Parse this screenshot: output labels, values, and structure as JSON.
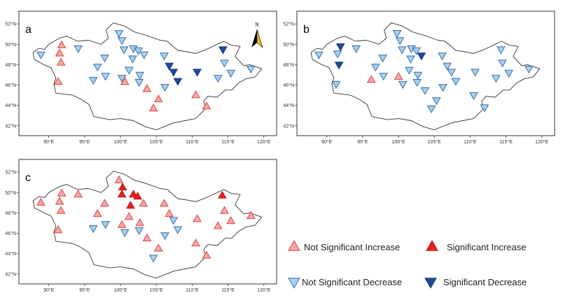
{
  "colors": {
    "not_sig_increase_fill": "#f4a9a8",
    "not_sig_increase_stroke": "#d9453f",
    "sig_increase_fill": "#e8201f",
    "sig_increase_stroke": "#b51614",
    "not_sig_decrease_fill": "#a7d0ee",
    "not_sig_decrease_stroke": "#3a6fa8",
    "sig_decrease_fill": "#1f4d9e",
    "sig_decrease_stroke": "#12336b",
    "outline": "#333333"
  },
  "map": {
    "lon_range": [
      87,
      121
    ],
    "lat_range": [
      41.3,
      52.7
    ],
    "lon_ticks": [
      90,
      95,
      100,
      105,
      110,
      115,
      120
    ],
    "lat_ticks": [
      42,
      44,
      46,
      48,
      50,
      52
    ],
    "lon_tick_labels": [
      "90°E",
      "95°E",
      "100°E",
      "105°E",
      "110°E",
      "115°E",
      "120°E"
    ],
    "lat_tick_labels": [
      "42°N",
      "44°N",
      "46°N",
      "48°N",
      "50°N",
      "52°N"
    ],
    "north_label": "N",
    "border": [
      [
        87.8,
        49.2
      ],
      [
        88.6,
        49.6
      ],
      [
        89.4,
        49.5
      ],
      [
        90.0,
        50.0
      ],
      [
        91.5,
        50.6
      ],
      [
        92.5,
        50.8
      ],
      [
        94.0,
        50.3
      ],
      [
        95.5,
        50.4
      ],
      [
        97.3,
        50.0
      ],
      [
        98.3,
        50.6
      ],
      [
        98.0,
        51.4
      ],
      [
        99.0,
        52.1
      ],
      [
        100.5,
        51.8
      ],
      [
        102.0,
        51.2
      ],
      [
        103.5,
        50.9
      ],
      [
        105.5,
        50.4
      ],
      [
        106.5,
        50.3
      ],
      [
        108.0,
        49.4
      ],
      [
        109.0,
        49.3
      ],
      [
        110.5,
        49.1
      ],
      [
        112.0,
        49.5
      ],
      [
        113.5,
        50.0
      ],
      [
        114.4,
        50.3
      ],
      [
        115.5,
        49.9
      ],
      [
        116.7,
        49.8
      ],
      [
        116.0,
        48.8
      ],
      [
        117.2,
        47.9
      ],
      [
        118.0,
        48.0
      ],
      [
        119.7,
        47.6
      ],
      [
        118.8,
        46.8
      ],
      [
        117.5,
        46.6
      ],
      [
        116.5,
        46.2
      ],
      [
        115.5,
        45.5
      ],
      [
        114.6,
        45.5
      ],
      [
        113.5,
        44.8
      ],
      [
        112.2,
        44.9
      ],
      [
        111.6,
        44.4
      ],
      [
        111.9,
        43.7
      ],
      [
        110.5,
        42.7
      ],
      [
        109.0,
        42.5
      ],
      [
        107.5,
        42.3
      ],
      [
        105.0,
        41.6
      ],
      [
        103.5,
        41.9
      ],
      [
        101.8,
        42.5
      ],
      [
        100.0,
        42.7
      ],
      [
        98.5,
        42.6
      ],
      [
        97.0,
        42.8
      ],
      [
        96.3,
        42.9
      ],
      [
        95.6,
        44.1
      ],
      [
        94.5,
        44.6
      ],
      [
        93.3,
        45.0
      ],
      [
        91.0,
        45.2
      ],
      [
        90.7,
        46.1
      ],
      [
        91.0,
        46.7
      ],
      [
        90.3,
        47.7
      ],
      [
        89.3,
        48.0
      ],
      [
        88.0,
        48.5
      ],
      [
        87.8,
        49.2
      ]
    ]
  },
  "panels": [
    {
      "id": "a",
      "label": "a",
      "show_north_arrow": true,
      "stations": [
        {
          "lon": 88.9,
          "lat": 49.0,
          "trend": "nsd"
        },
        {
          "lon": 91.8,
          "lat": 49.9,
          "trend": "nsi"
        },
        {
          "lon": 91.5,
          "lat": 49.1,
          "trend": "nsi"
        },
        {
          "lon": 91.7,
          "lat": 48.2,
          "trend": "nsi"
        },
        {
          "lon": 91.3,
          "lat": 46.3,
          "trend": "nsi"
        },
        {
          "lon": 94.1,
          "lat": 49.6,
          "trend": "nsd"
        },
        {
          "lon": 96.2,
          "lat": 46.5,
          "trend": "nsd"
        },
        {
          "lon": 96.8,
          "lat": 47.8,
          "trend": "nsd"
        },
        {
          "lon": 97.8,
          "lat": 48.7,
          "trend": "nsd"
        },
        {
          "lon": 97.9,
          "lat": 46.9,
          "trend": "nsd"
        },
        {
          "lon": 99.8,
          "lat": 51.1,
          "trend": "nsd"
        },
        {
          "lon": 100.2,
          "lat": 50.4,
          "trend": "nsd"
        },
        {
          "lon": 100.5,
          "lat": 49.5,
          "trend": "nsd"
        },
        {
          "lon": 100.2,
          "lat": 46.7,
          "trend": "nsd"
        },
        {
          "lon": 100.6,
          "lat": 46.3,
          "trend": "nsi"
        },
        {
          "lon": 101.8,
          "lat": 49.6,
          "trend": "nsd"
        },
        {
          "lon": 101.7,
          "lat": 48.6,
          "trend": "nsd"
        },
        {
          "lon": 101.2,
          "lat": 47.5,
          "trend": "nsd"
        },
        {
          "lon": 102.5,
          "lat": 49.4,
          "trend": "nsd"
        },
        {
          "lon": 103.3,
          "lat": 49.0,
          "trend": "nsd"
        },
        {
          "lon": 102.7,
          "lat": 47.0,
          "trend": "nsd"
        },
        {
          "lon": 102.6,
          "lat": 46.3,
          "trend": "nsd"
        },
        {
          "lon": 103.7,
          "lat": 45.6,
          "trend": "nsi"
        },
        {
          "lon": 104.6,
          "lat": 43.7,
          "trend": "nsi"
        },
        {
          "lon": 105.3,
          "lat": 44.6,
          "trend": "nsi"
        },
        {
          "lon": 106.1,
          "lat": 48.9,
          "trend": "nsd"
        },
        {
          "lon": 106.2,
          "lat": 45.8,
          "trend": "nsd"
        },
        {
          "lon": 106.8,
          "lat": 47.9,
          "trend": "sd"
        },
        {
          "lon": 107.4,
          "lat": 47.3,
          "trend": "sd"
        },
        {
          "lon": 108.0,
          "lat": 46.4,
          "trend": "sd"
        },
        {
          "lon": 110.5,
          "lat": 45.0,
          "trend": "nsi"
        },
        {
          "lon": 110.7,
          "lat": 47.3,
          "trend": "sd"
        },
        {
          "lon": 112.0,
          "lat": 43.9,
          "trend": "nsi"
        },
        {
          "lon": 113.6,
          "lat": 46.7,
          "trend": "nsd"
        },
        {
          "lon": 114.3,
          "lat": 49.5,
          "trend": "sd"
        },
        {
          "lon": 114.5,
          "lat": 48.2,
          "trend": "nsd"
        },
        {
          "lon": 115.4,
          "lat": 47.2,
          "trend": "nsd"
        },
        {
          "lon": 118.2,
          "lat": 47.6,
          "trend": "nsd"
        }
      ]
    },
    {
      "id": "b",
      "label": "b",
      "show_north_arrow": false,
      "stations": [
        {
          "lon": 88.9,
          "lat": 49.0,
          "trend": "nsd"
        },
        {
          "lon": 91.9,
          "lat": 49.8,
          "trend": "sd"
        },
        {
          "lon": 91.5,
          "lat": 49.1,
          "trend": "nsd"
        },
        {
          "lon": 91.7,
          "lat": 48.0,
          "trend": "sd"
        },
        {
          "lon": 91.3,
          "lat": 46.1,
          "trend": "nsd"
        },
        {
          "lon": 94.1,
          "lat": 49.6,
          "trend": "nsd"
        },
        {
          "lon": 96.2,
          "lat": 46.5,
          "trend": "nsi"
        },
        {
          "lon": 96.8,
          "lat": 47.8,
          "trend": "nsd"
        },
        {
          "lon": 97.8,
          "lat": 48.7,
          "trend": "nsd"
        },
        {
          "lon": 97.9,
          "lat": 46.9,
          "trend": "nsd"
        },
        {
          "lon": 99.8,
          "lat": 51.1,
          "trend": "nsd"
        },
        {
          "lon": 100.2,
          "lat": 50.4,
          "trend": "nsd"
        },
        {
          "lon": 100.5,
          "lat": 49.5,
          "trend": "nsd"
        },
        {
          "lon": 100.0,
          "lat": 46.8,
          "trend": "nsi"
        },
        {
          "lon": 100.6,
          "lat": 46.1,
          "trend": "nsd"
        },
        {
          "lon": 101.8,
          "lat": 49.6,
          "trend": "nsd"
        },
        {
          "lon": 101.7,
          "lat": 48.6,
          "trend": "nsd"
        },
        {
          "lon": 101.5,
          "lat": 47.5,
          "trend": "nsd"
        },
        {
          "lon": 102.5,
          "lat": 49.4,
          "trend": "nsd"
        },
        {
          "lon": 103.2,
          "lat": 48.9,
          "trend": "sd"
        },
        {
          "lon": 102.7,
          "lat": 47.0,
          "trend": "nsd"
        },
        {
          "lon": 102.6,
          "lat": 46.3,
          "trend": "nsd"
        },
        {
          "lon": 103.7,
          "lat": 45.5,
          "trend": "nsd"
        },
        {
          "lon": 104.6,
          "lat": 43.7,
          "trend": "nsd"
        },
        {
          "lon": 105.3,
          "lat": 44.5,
          "trend": "nsd"
        },
        {
          "lon": 106.1,
          "lat": 48.9,
          "trend": "nsd"
        },
        {
          "lon": 106.2,
          "lat": 45.8,
          "trend": "nsd"
        },
        {
          "lon": 106.8,
          "lat": 47.9,
          "trend": "nsd"
        },
        {
          "lon": 107.4,
          "lat": 47.3,
          "trend": "nsd"
        },
        {
          "lon": 108.0,
          "lat": 46.4,
          "trend": "nsd"
        },
        {
          "lon": 110.5,
          "lat": 45.0,
          "trend": "nsd"
        },
        {
          "lon": 110.7,
          "lat": 47.3,
          "trend": "nsd"
        },
        {
          "lon": 112.0,
          "lat": 43.8,
          "trend": "nsd"
        },
        {
          "lon": 113.6,
          "lat": 46.7,
          "trend": "nsd"
        },
        {
          "lon": 114.3,
          "lat": 49.5,
          "trend": "nsd"
        },
        {
          "lon": 114.5,
          "lat": 48.2,
          "trend": "nsd"
        },
        {
          "lon": 115.4,
          "lat": 47.2,
          "trend": "nsd"
        },
        {
          "lon": 118.2,
          "lat": 47.6,
          "trend": "nsd"
        }
      ]
    },
    {
      "id": "c",
      "label": "c",
      "show_north_arrow": false,
      "stations": [
        {
          "lon": 88.9,
          "lat": 49.0,
          "trend": "nsi"
        },
        {
          "lon": 91.8,
          "lat": 49.9,
          "trend": "nsi"
        },
        {
          "lon": 91.5,
          "lat": 49.1,
          "trend": "nsi"
        },
        {
          "lon": 91.7,
          "lat": 48.2,
          "trend": "nsi"
        },
        {
          "lon": 91.3,
          "lat": 46.3,
          "trend": "nsi"
        },
        {
          "lon": 94.1,
          "lat": 49.8,
          "trend": "nsi"
        },
        {
          "lon": 96.2,
          "lat": 46.5,
          "trend": "nsd"
        },
        {
          "lon": 96.8,
          "lat": 47.9,
          "trend": "nsi"
        },
        {
          "lon": 97.8,
          "lat": 48.9,
          "trend": "nsi"
        },
        {
          "lon": 97.9,
          "lat": 46.9,
          "trend": "nsd"
        },
        {
          "lon": 99.8,
          "lat": 51.2,
          "trend": "nsi"
        },
        {
          "lon": 100.3,
          "lat": 50.5,
          "trend": "si"
        },
        {
          "lon": 100.2,
          "lat": 49.8,
          "trend": "si"
        },
        {
          "lon": 100.2,
          "lat": 46.8,
          "trend": "nsi"
        },
        {
          "lon": 100.6,
          "lat": 46.1,
          "trend": "nsd"
        },
        {
          "lon": 101.8,
          "lat": 49.8,
          "trend": "si"
        },
        {
          "lon": 101.4,
          "lat": 48.7,
          "trend": "si"
        },
        {
          "lon": 101.2,
          "lat": 47.6,
          "trend": "nsi"
        },
        {
          "lon": 102.4,
          "lat": 49.6,
          "trend": "si"
        },
        {
          "lon": 103.2,
          "lat": 48.9,
          "trend": "nsi"
        },
        {
          "lon": 102.7,
          "lat": 47.0,
          "trend": "nsi"
        },
        {
          "lon": 102.6,
          "lat": 46.3,
          "trend": "nsd"
        },
        {
          "lon": 103.7,
          "lat": 45.5,
          "trend": "nsi"
        },
        {
          "lon": 104.6,
          "lat": 43.6,
          "trend": "nsd"
        },
        {
          "lon": 105.3,
          "lat": 44.5,
          "trend": "nsi"
        },
        {
          "lon": 106.1,
          "lat": 48.9,
          "trend": "nsi"
        },
        {
          "lon": 106.2,
          "lat": 45.8,
          "trend": "nsd"
        },
        {
          "lon": 106.8,
          "lat": 47.9,
          "trend": "nsi"
        },
        {
          "lon": 107.4,
          "lat": 47.3,
          "trend": "nsd"
        },
        {
          "lon": 108.0,
          "lat": 46.4,
          "trend": "nsd"
        },
        {
          "lon": 110.5,
          "lat": 45.0,
          "trend": "nsi"
        },
        {
          "lon": 110.7,
          "lat": 47.4,
          "trend": "nsi"
        },
        {
          "lon": 112.0,
          "lat": 43.8,
          "trend": "nsi"
        },
        {
          "lon": 113.6,
          "lat": 46.7,
          "trend": "nsi"
        },
        {
          "lon": 114.2,
          "lat": 49.7,
          "trend": "si"
        },
        {
          "lon": 114.5,
          "lat": 48.2,
          "trend": "nsi"
        },
        {
          "lon": 115.4,
          "lat": 47.2,
          "trend": "nsi"
        },
        {
          "lon": 118.2,
          "lat": 47.7,
          "trend": "nsi"
        }
      ]
    }
  ],
  "legend": {
    "items": [
      {
        "key": "nsi",
        "label": "Not Significant Increase"
      },
      {
        "key": "si",
        "label": "Significant Increase"
      },
      {
        "key": "nsd",
        "label": "Not Significant Decrease"
      },
      {
        "key": "sd",
        "label": "Significant Decrease"
      }
    ]
  }
}
